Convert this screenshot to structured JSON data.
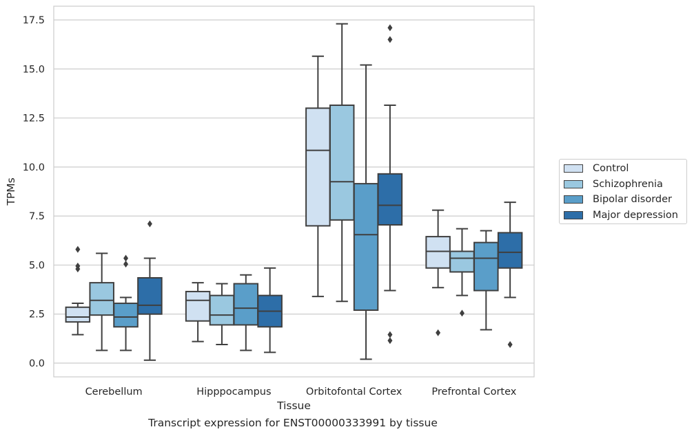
{
  "chart_data": {
    "type": "box",
    "xlabel": "Tissue",
    "ylabel": "TPMs",
    "caption": "Transcript expression for ENST00000333991 by tissue",
    "ylim": [
      -0.7,
      18.2
    ],
    "yticks": [
      0.0,
      2.5,
      5.0,
      7.5,
      10.0,
      12.5,
      15.0,
      17.5
    ],
    "ytick_labels": [
      "0.0",
      "2.5",
      "5.0",
      "7.5",
      "10.0",
      "12.5",
      "15.0",
      "17.5"
    ],
    "grid": "horizontal",
    "legend_position": "right",
    "categories": [
      "Cerebellum",
      "Hipppocampus",
      "Orbitofontal Cortex",
      "Prefrontal Cortex"
    ],
    "series": [
      {
        "name": "Control",
        "color": "#d0e1f2",
        "boxes": [
          {
            "whislo": 1.45,
            "q1": 2.1,
            "med": 2.35,
            "q3": 2.85,
            "whishi": 3.05,
            "fliers": [
              4.8,
              4.95,
              5.8
            ]
          },
          {
            "whislo": 1.1,
            "q1": 2.15,
            "med": 3.2,
            "q3": 3.65,
            "whishi": 4.1,
            "fliers": []
          },
          {
            "whislo": 3.4,
            "q1": 7.0,
            "med": 10.85,
            "q3": 13.0,
            "whishi": 15.65,
            "fliers": []
          },
          {
            "whislo": 3.85,
            "q1": 4.85,
            "med": 5.7,
            "q3": 6.45,
            "whishi": 7.8,
            "fliers": [
              1.55
            ]
          }
        ]
      },
      {
        "name": "Schizophrenia",
        "color": "#9ac8e0",
        "boxes": [
          {
            "whislo": 0.65,
            "q1": 2.45,
            "med": 3.2,
            "q3": 4.1,
            "whishi": 5.6,
            "fliers": []
          },
          {
            "whislo": 0.95,
            "q1": 1.95,
            "med": 2.45,
            "q3": 3.45,
            "whishi": 4.05,
            "fliers": []
          },
          {
            "whislo": 3.15,
            "q1": 7.3,
            "med": 9.25,
            "q3": 13.15,
            "whishi": 17.3,
            "fliers": []
          },
          {
            "whislo": 3.45,
            "q1": 4.65,
            "med": 5.35,
            "q3": 5.7,
            "whishi": 6.85,
            "fliers": [
              2.55
            ]
          }
        ]
      },
      {
        "name": "Bipolar disorder",
        "color": "#5a9ec9",
        "boxes": [
          {
            "whislo": 0.65,
            "q1": 1.85,
            "med": 2.35,
            "q3": 3.05,
            "whishi": 3.35,
            "fliers": [
              5.05,
              5.35
            ]
          },
          {
            "whislo": 0.65,
            "q1": 1.95,
            "med": 2.8,
            "q3": 4.05,
            "whishi": 4.5,
            "fliers": []
          },
          {
            "whislo": 0.2,
            "q1": 2.7,
            "med": 6.55,
            "q3": 9.15,
            "whishi": 15.2,
            "fliers": []
          },
          {
            "whislo": 1.7,
            "q1": 3.7,
            "med": 5.35,
            "q3": 6.15,
            "whishi": 6.75,
            "fliers": []
          }
        ]
      },
      {
        "name": "Major depression",
        "color": "#2d6ea8",
        "boxes": [
          {
            "whislo": 0.15,
            "q1": 2.5,
            "med": 2.95,
            "q3": 4.35,
            "whishi": 5.35,
            "fliers": [
              7.1
            ]
          },
          {
            "whislo": 0.55,
            "q1": 1.85,
            "med": 2.65,
            "q3": 3.45,
            "whishi": 4.85,
            "fliers": []
          },
          {
            "whislo": 3.7,
            "q1": 7.05,
            "med": 8.05,
            "q3": 9.65,
            "whishi": 13.15,
            "fliers": [
              1.15,
              1.45,
              16.5,
              17.1
            ]
          },
          {
            "whislo": 3.35,
            "q1": 4.85,
            "med": 5.65,
            "q3": 6.65,
            "whishi": 8.2,
            "fliers": [
              0.95
            ]
          }
        ]
      }
    ]
  }
}
